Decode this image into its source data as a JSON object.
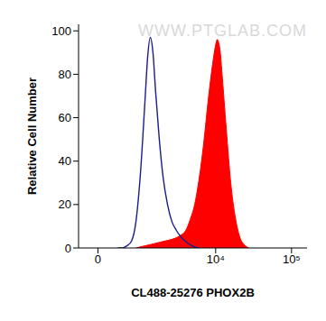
{
  "chart_data": {
    "type": "area",
    "x_label": "CL488-25276 PHOX2B",
    "y_label": "Relative Cell Number",
    "annotations": [
      "WWW.PTGLAB.COM"
    ],
    "log": "x",
    "xlim": [
      -350,
      160000
    ],
    "xticks": [
      0,
      {
        "value": 10000,
        "label": "10⁴"
      },
      {
        "value": 100000,
        "label": "10⁵"
      }
    ],
    "ylim": [
      0,
      103
    ],
    "yticks": [
      0,
      20,
      40,
      60,
      80,
      100
    ],
    "series": [
      {
        "type": "area",
        "color": "#ff0000",
        "x": [
          802,
          1107,
          1506,
          1987,
          2635,
          3485,
          4003,
          4594,
          5275,
          6052,
          6942,
          7966,
          9143,
          9926,
          10489,
          11520,
          12031,
          13794,
          15820,
          18185,
          20831,
          23871,
          27418
        ],
        "values": [
          0,
          1,
          2,
          3,
          4,
          6,
          8,
          13,
          20,
          32,
          48,
          68,
          85,
          93,
          96,
          90,
          82,
          55,
          30,
          14,
          5,
          1.5,
          0
        ]
      },
      {
        "type": "line",
        "color": "#1c1c8c",
        "x": [
          360,
          456,
          560,
          673,
          802,
          948,
          1107,
          1210,
          1321,
          1441,
          1571,
          1768,
          1987,
          2291,
          2635,
          3029,
          3485,
          4003,
          4594,
          5275,
          6052
        ],
        "values": [
          0,
          0,
          1,
          3,
          12,
          35,
          68,
          88,
          97,
          90,
          72,
          50,
          33,
          20,
          12,
          8,
          5,
          3,
          1.5,
          0.5,
          0
        ]
      }
    ]
  }
}
